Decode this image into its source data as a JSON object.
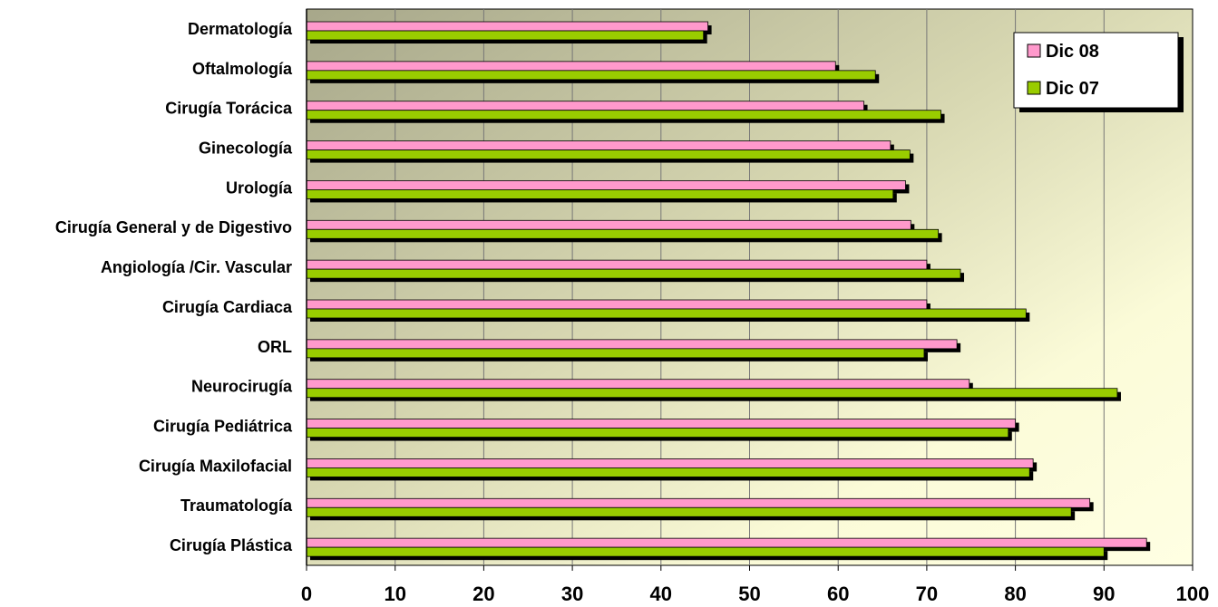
{
  "chart_data": {
    "type": "bar",
    "orientation": "horizontal",
    "categories": [
      "Dermatología",
      "Oftalmología",
      "Cirugía Torácica",
      "Ginecología",
      "Urología",
      "Cirugía General y de Digestivo",
      "Angiología /Cir. Vascular",
      "Cirugía Cardiaca",
      "ORL",
      "Neurocirugía",
      "Cirugía Pediátrica",
      "Cirugía Maxilofacial",
      "Traumatología",
      "Cirugía Plástica"
    ],
    "series": [
      {
        "name": "Dic 08",
        "color": "#ff99cc",
        "values": [
          45.3,
          59.7,
          62.9,
          65.9,
          67.6,
          68.2,
          70.0,
          70.0,
          73.4,
          74.8,
          80.0,
          82.0,
          88.4,
          94.8
        ]
      },
      {
        "name": "Dic 07",
        "color": "#99cc00",
        "values": [
          44.8,
          64.2,
          71.6,
          68.1,
          66.2,
          71.3,
          73.8,
          81.2,
          69.7,
          91.5,
          79.2,
          81.6,
          86.3,
          90.0
        ]
      }
    ],
    "xlim": [
      0,
      100
    ],
    "xticks": [
      "0",
      "10",
      "20",
      "30",
      "40",
      "50",
      "60",
      "70",
      "80",
      "90",
      "100"
    ],
    "grid": "vertical",
    "legend_position": "top-right",
    "plot_background": "gradient olive to pale yellow",
    "title": "",
    "xlabel": "",
    "ylabel": ""
  }
}
